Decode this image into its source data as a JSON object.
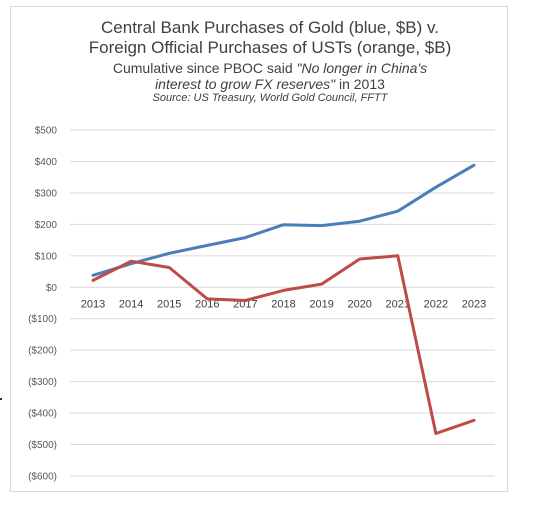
{
  "chart_data": {
    "type": "line",
    "title_line1": "Central Bank Purchases of Gold (blue, $B) v.",
    "title_line2": "Foreign Official Purchases of USTs (orange, $B)",
    "subtitle_prefix": "Cumulative since PBOC said ",
    "subtitle_quote_1": "\"No longer in China's",
    "subtitle_quote_2": "interest to grow FX reserves\"",
    "subtitle_suffix": " in 2013",
    "source": "Source: US Treasury, World Gold Council, FFTT",
    "x": [
      "2013",
      "2014",
      "2015",
      "2016",
      "2017",
      "2018",
      "2019",
      "2020",
      "2021",
      "2022",
      "2023"
    ],
    "ylim": [
      -600,
      500
    ],
    "yticks": [
      500,
      400,
      300,
      200,
      100,
      0,
      -100,
      -200,
      -300,
      -400,
      -500,
      -600
    ],
    "ytick_labels": [
      "$500",
      "$400",
      "$300",
      "$200",
      "$100",
      "$0",
      "($100)",
      "($200)",
      "($300)",
      "($400)",
      "($500)",
      "($600)"
    ],
    "grid": true,
    "series": [
      {
        "color": "#4a7ebb",
        "values": [
          38,
          75,
          108,
          133,
          158,
          199,
          196,
          210,
          242,
          318,
          388
        ]
      },
      {
        "color": "#be4b48",
        "values": [
          22,
          83,
          63,
          -37,
          -42,
          -10,
          10,
          90,
          100,
          -465,
          -423
        ]
      }
    ]
  }
}
